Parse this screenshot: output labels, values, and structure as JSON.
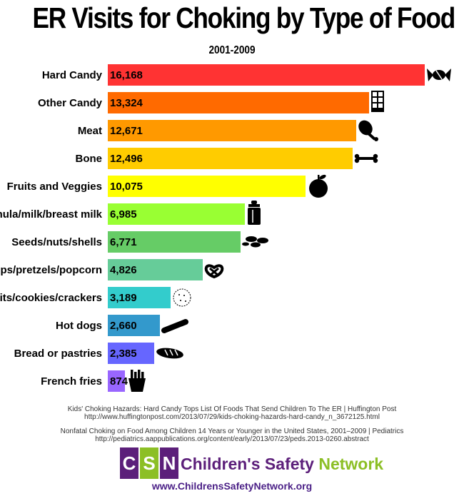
{
  "chart_data": {
    "type": "bar",
    "orientation": "horizontal",
    "title": "ER Visits for Choking by Type of Food",
    "subtitle": "2001-2009",
    "categories": [
      "Hard Candy",
      "Other Candy",
      "Meat",
      "Bone",
      "Fruits and Veggies",
      "Formula/milk/breast milk",
      "Seeds/nuts/shells",
      "Chips/pretzels/popcorn",
      "Bicuits/cookies/crackers",
      "Hot dogs",
      "Bread or pastries",
      "French fries"
    ],
    "values": [
      16168,
      13324,
      12671,
      12496,
      10075,
      6985,
      6771,
      4826,
      3189,
      2660,
      2385,
      874
    ],
    "value_labels": [
      "16,168",
      "13,324",
      "12,671",
      "12,496",
      "10,075",
      "6,985",
      "6,771",
      "4,826",
      "3,189",
      "2,660",
      "2,385",
      "874"
    ],
    "colors": [
      "#ff3333",
      "#ff6a00",
      "#ff9900",
      "#ffcc00",
      "#ffff00",
      "#99ff33",
      "#66cc66",
      "#66cc99",
      "#33cccc",
      "#3399cc",
      "#6666ff",
      "#9966ff"
    ],
    "icons": [
      "candy-icon",
      "chocolate-bar-icon",
      "drumstick-icon",
      "bone-icon",
      "apple-icon",
      "baby-bottle-icon",
      "seeds-icon",
      "pretzel-icon",
      "cookie-icon",
      "hot-dog-icon",
      "bread-icon",
      "french-fries-icon"
    ],
    "xlim": [
      0,
      16168
    ],
    "grid": false,
    "legend": "none"
  },
  "sources": [
    {
      "title": "Kids' Choking Hazards: Hard Candy Tops List Of Foods That Send Children To The ER | Huffington Post",
      "url": "http://www.huffingtonpost.com/2013/07/29/kids-choking-hazards-hard-candy_n_3672125.html"
    },
    {
      "title": "Nonfatal Choking on Food Among Children 14 Years or Younger in the United States, 2001–2009 | Pediatrics",
      "url": "http://pediatrics.aappublications.org/content/early/2013/07/23/peds.2013-0260.abstract"
    }
  ],
  "logo": {
    "letters": [
      "C",
      "S",
      "N"
    ],
    "letter_colors": [
      "#5c1f7a",
      "#8cbf26",
      "#5c1f7a"
    ],
    "name_part1": "Children's Safety",
    "name_part2": "Network"
  },
  "url": "www.ChildrensSafetyNetwork.org"
}
